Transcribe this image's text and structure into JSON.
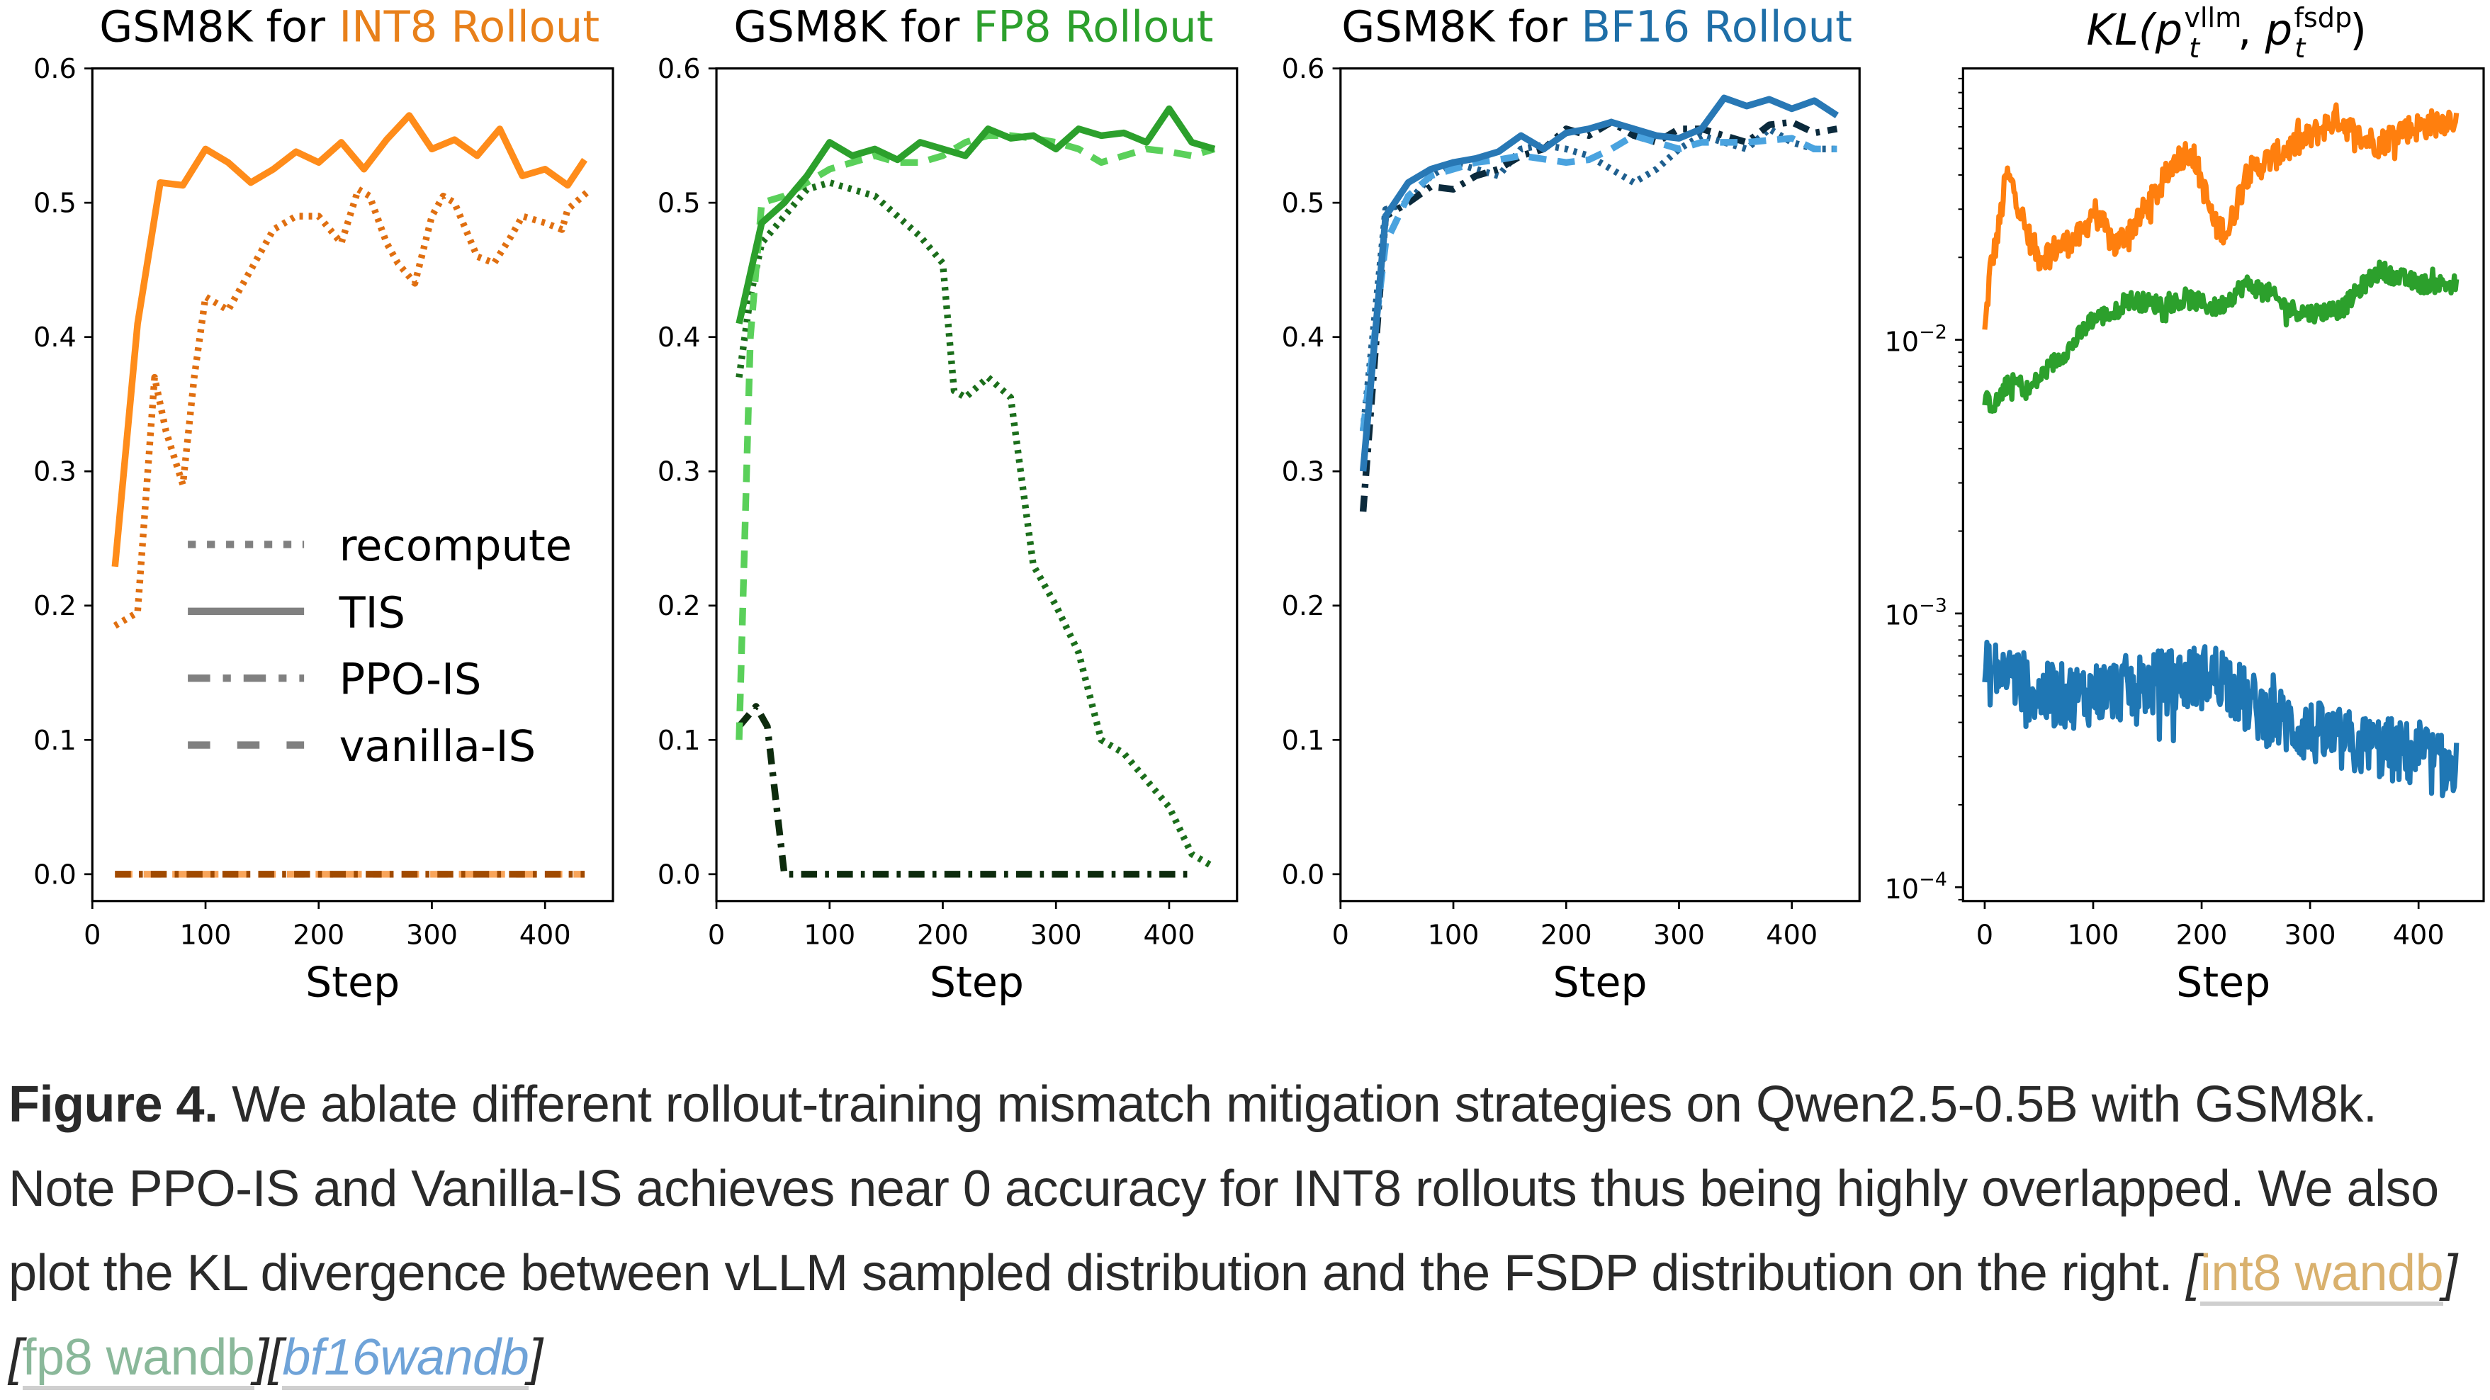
{
  "chart_data": [
    {
      "type": "line",
      "title_prefix": "GSM8K for ",
      "title_highlight": "INT8 Rollout",
      "title_color": "#e8801a",
      "xlabel": "Step",
      "ylabel": "",
      "xlim": [
        0,
        460
      ],
      "ylim": [
        -0.02,
        0.6
      ],
      "xticks": [
        0,
        100,
        200,
        300,
        400
      ],
      "yticks": [
        0.0,
        0.1,
        0.2,
        0.3,
        0.4,
        0.5,
        0.6
      ],
      "yticklabels": [
        "0.0",
        "0.1",
        "0.2",
        "0.3",
        "0.4",
        "0.5",
        "0.6"
      ],
      "yscale": "linear",
      "legend": {
        "placement": "center-left",
        "entries": [
          {
            "label": "recompute",
            "style": "dotted"
          },
          {
            "label": "TIS",
            "style": "solid"
          },
          {
            "label": "PPO-IS",
            "style": "dashdot"
          },
          {
            "label": "vanilla-IS",
            "style": "dashed"
          }
        ]
      },
      "series": [
        {
          "name": "vanilla-IS",
          "style": "dashed",
          "color": "#f9a55a",
          "x": [
            20,
            40,
            60,
            80,
            100,
            120,
            140,
            160,
            180,
            200,
            220,
            240,
            260,
            280,
            300,
            320,
            340,
            360,
            380,
            400,
            420,
            435
          ],
          "y": [
            0,
            0,
            0,
            0,
            0,
            0,
            0,
            0,
            0,
            0,
            0,
            0,
            0,
            0,
            0,
            0,
            0,
            0,
            0,
            0,
            0,
            0
          ]
        },
        {
          "name": "PPO-IS",
          "style": "dashdot",
          "color": "#a04a00",
          "x": [
            20,
            40,
            60,
            80,
            100,
            120,
            140,
            160,
            180,
            200,
            220,
            240,
            260,
            280,
            300,
            320,
            340,
            360,
            380,
            400,
            420,
            435
          ],
          "y": [
            0,
            0,
            0,
            0,
            0,
            0,
            0,
            0,
            0,
            0,
            0,
            0,
            0,
            0,
            0,
            0,
            0,
            0,
            0,
            0,
            0,
            0
          ]
        },
        {
          "name": "recompute",
          "style": "dotted",
          "color": "#e06f10",
          "x": [
            20,
            40,
            55,
            65,
            80,
            90,
            100,
            120,
            140,
            160,
            180,
            200,
            210,
            220,
            235,
            245,
            260,
            270,
            285,
            300,
            310,
            320,
            340,
            355,
            370,
            380,
            400,
            415,
            420,
            440
          ],
          "y": [
            0.185,
            0.195,
            0.37,
            0.33,
            0.29,
            0.37,
            0.43,
            0.42,
            0.45,
            0.48,
            0.49,
            0.49,
            0.48,
            0.47,
            0.51,
            0.505,
            0.47,
            0.455,
            0.44,
            0.49,
            0.505,
            0.5,
            0.46,
            0.455,
            0.475,
            0.49,
            0.485,
            0.48,
            0.495,
            0.51
          ]
        },
        {
          "name": "TIS",
          "style": "solid",
          "color": "#ff8c1a",
          "x": [
            20,
            40,
            60,
            80,
            100,
            120,
            140,
            160,
            180,
            200,
            220,
            240,
            260,
            280,
            300,
            320,
            340,
            360,
            380,
            400,
            420,
            435
          ],
          "y": [
            0.229,
            0.41,
            0.515,
            0.513,
            0.54,
            0.53,
            0.515,
            0.525,
            0.538,
            0.53,
            0.545,
            0.525,
            0.547,
            0.565,
            0.54,
            0.547,
            0.535,
            0.555,
            0.52,
            0.525,
            0.513,
            0.532
          ]
        }
      ]
    },
    {
      "type": "line",
      "title_prefix": "GSM8K for ",
      "title_highlight": "FP8 Rollout",
      "title_color": "#2ca02c",
      "xlabel": "Step",
      "ylabel": "",
      "xlim": [
        0,
        460
      ],
      "ylim": [
        -0.02,
        0.6
      ],
      "xticks": [
        0,
        100,
        200,
        300,
        400
      ],
      "yticks": [
        0.0,
        0.1,
        0.2,
        0.3,
        0.4,
        0.5,
        0.6
      ],
      "yticklabels": [
        "0.0",
        "0.1",
        "0.2",
        "0.3",
        "0.4",
        "0.5",
        "0.6"
      ],
      "yscale": "linear",
      "series": [
        {
          "name": "recompute",
          "style": "dotted",
          "color": "#1b6e1b",
          "x": [
            20,
            30,
            40,
            60,
            80,
            100,
            120,
            140,
            160,
            180,
            200,
            210,
            220,
            240,
            260,
            280,
            300,
            320,
            340,
            360,
            380,
            400,
            420,
            440
          ],
          "y": [
            0.37,
            0.43,
            0.47,
            0.49,
            0.51,
            0.515,
            0.51,
            0.505,
            0.49,
            0.475,
            0.455,
            0.36,
            0.355,
            0.37,
            0.355,
            0.23,
            0.2,
            0.165,
            0.1,
            0.09,
            0.07,
            0.05,
            0.015,
            0.005
          ]
        },
        {
          "name": "PPO-IS",
          "style": "dashdot",
          "color": "#0d2b0d",
          "x": [
            20,
            35,
            45,
            60,
            80,
            100,
            140,
            180,
            220,
            260,
            300,
            340,
            380,
            420
          ],
          "y": [
            0.11,
            0.125,
            0.11,
            0.0,
            0.0,
            0.0,
            0.0,
            0.0,
            0.0,
            0.0,
            0.0,
            0.0,
            0.0,
            0.0
          ]
        },
        {
          "name": "vanilla-IS",
          "style": "dashed",
          "color": "#5ad05a",
          "x": [
            20,
            30,
            40,
            60,
            80,
            100,
            120,
            140,
            160,
            180,
            200,
            220,
            240,
            260,
            280,
            300,
            320,
            340,
            360,
            380,
            400,
            420,
            440
          ],
          "y": [
            0.1,
            0.4,
            0.5,
            0.505,
            0.515,
            0.525,
            0.53,
            0.535,
            0.53,
            0.53,
            0.535,
            0.545,
            0.55,
            0.55,
            0.548,
            0.545,
            0.54,
            0.53,
            0.535,
            0.54,
            0.538,
            0.535,
            0.54
          ]
        },
        {
          "name": "TIS",
          "style": "solid",
          "color": "#2ca02c",
          "x": [
            20,
            40,
            60,
            80,
            100,
            120,
            140,
            160,
            180,
            200,
            220,
            240,
            260,
            280,
            300,
            320,
            340,
            360,
            380,
            400,
            420,
            440
          ],
          "y": [
            0.41,
            0.485,
            0.5,
            0.52,
            0.545,
            0.535,
            0.54,
            0.532,
            0.545,
            0.54,
            0.535,
            0.555,
            0.548,
            0.55,
            0.54,
            0.555,
            0.55,
            0.552,
            0.545,
            0.57,
            0.545,
            0.54
          ]
        }
      ]
    },
    {
      "type": "line",
      "title_prefix": "GSM8K for ",
      "title_highlight": "BF16 Rollout",
      "title_color": "#1f6fa8",
      "xlabel": "Step",
      "ylabel": "",
      "xlim": [
        0,
        460
      ],
      "ylim": [
        -0.02,
        0.6
      ],
      "xticks": [
        0,
        100,
        200,
        300,
        400
      ],
      "yticks": [
        0.0,
        0.1,
        0.2,
        0.3,
        0.4,
        0.5,
        0.6
      ],
      "yticklabels": [
        "0.0",
        "0.1",
        "0.2",
        "0.3",
        "0.4",
        "0.5",
        "0.6"
      ],
      "yscale": "linear",
      "series": [
        {
          "name": "recompute",
          "style": "dotted",
          "color": "#1f5f8f",
          "x": [
            20,
            40,
            60,
            80,
            100,
            120,
            140,
            160,
            180,
            200,
            220,
            240,
            260,
            280,
            300,
            320,
            340,
            360,
            380,
            400,
            420,
            440
          ],
          "y": [
            0.33,
            0.495,
            0.5,
            0.52,
            0.53,
            0.525,
            0.52,
            0.54,
            0.543,
            0.54,
            0.535,
            0.525,
            0.515,
            0.525,
            0.54,
            0.55,
            0.545,
            0.54,
            0.555,
            0.545,
            0.54,
            0.54
          ]
        },
        {
          "name": "PPO-IS",
          "style": "dashdot",
          "color": "#0b2a3c",
          "x": [
            20,
            40,
            60,
            80,
            100,
            120,
            140,
            160,
            180,
            200,
            220,
            240,
            260,
            280,
            300,
            320,
            340,
            360,
            380,
            400,
            420,
            440
          ],
          "y": [
            0.27,
            0.49,
            0.5,
            0.512,
            0.51,
            0.52,
            0.525,
            0.535,
            0.54,
            0.555,
            0.55,
            0.56,
            0.55,
            0.545,
            0.555,
            0.555,
            0.55,
            0.545,
            0.558,
            0.56,
            0.552,
            0.555
          ]
        },
        {
          "name": "vanilla-IS",
          "style": "dashed",
          "color": "#4aa3df",
          "x": [
            20,
            40,
            60,
            80,
            100,
            120,
            140,
            160,
            200,
            220,
            240,
            260,
            300,
            320,
            340,
            360,
            400,
            420,
            440
          ],
          "y": [
            0.33,
            0.47,
            0.505,
            0.52,
            0.525,
            0.53,
            0.532,
            0.535,
            0.53,
            0.532,
            0.54,
            0.55,
            0.54,
            0.545,
            0.545,
            0.545,
            0.548,
            0.54,
            0.54
          ]
        },
        {
          "name": "TIS",
          "style": "solid",
          "color": "#2878b5",
          "x": [
            20,
            40,
            60,
            80,
            100,
            120,
            140,
            160,
            180,
            200,
            220,
            240,
            260,
            280,
            300,
            320,
            340,
            360,
            380,
            400,
            420,
            440
          ],
          "y": [
            0.3,
            0.49,
            0.515,
            0.525,
            0.53,
            0.533,
            0.538,
            0.55,
            0.54,
            0.552,
            0.555,
            0.56,
            0.555,
            0.55,
            0.548,
            0.555,
            0.578,
            0.572,
            0.577,
            0.57,
            0.576,
            0.565
          ]
        }
      ]
    },
    {
      "type": "line",
      "title_math": {
        "base": "KL(",
        "p1": "p",
        "sub1": "t",
        "sup1": "vllm",
        "sep": ", ",
        "p2": "p",
        "sub2": "t",
        "sup2": "fsdp",
        "close": ")"
      },
      "xlabel": "Step",
      "ylabel": "",
      "xlim": [
        -20,
        460
      ],
      "ylim": [
        8.9e-05,
        0.098
      ],
      "yscale": "log",
      "xticks": [
        0,
        100,
        200,
        300,
        400
      ],
      "yticks": [
        0.0001,
        0.001,
        0.01
      ],
      "yticklabels": [
        {
          "base": "10",
          "exp": "−4"
        },
        {
          "base": "10",
          "exp": "−3"
        },
        {
          "base": "10",
          "exp": "−2"
        }
      ],
      "series": [
        {
          "name": "INT8 KL",
          "style": "solid",
          "color": "#ff7f0e",
          "noise_rel": 0.12,
          "x": [
            0,
            5,
            12,
            20,
            28,
            38,
            50,
            70,
            90,
            100,
            120,
            140,
            160,
            175,
            190,
            200,
            212,
            225,
            240,
            260,
            280,
            300,
            325,
            345,
            365,
            380,
            400,
            415,
            435
          ],
          "y": [
            0.0105,
            0.018,
            0.024,
            0.04,
            0.035,
            0.025,
            0.02,
            0.022,
            0.024,
            0.03,
            0.022,
            0.027,
            0.035,
            0.045,
            0.05,
            0.038,
            0.026,
            0.025,
            0.04,
            0.045,
            0.05,
            0.055,
            0.065,
            0.055,
            0.052,
            0.058,
            0.06,
            0.062,
            0.065
          ]
        },
        {
          "name": "FP8 KL",
          "style": "solid",
          "color": "#2ca02c",
          "noise_rel": 0.08,
          "x": [
            0,
            10,
            20,
            30,
            40,
            60,
            80,
            100,
            120,
            130,
            160,
            190,
            215,
            240,
            260,
            280,
            300,
            330,
            350,
            365,
            380,
            400,
            435
          ],
          "y": [
            0.006,
            0.0058,
            0.0068,
            0.007,
            0.0065,
            0.008,
            0.0095,
            0.012,
            0.0125,
            0.014,
            0.0135,
            0.014,
            0.013,
            0.016,
            0.015,
            0.013,
            0.0125,
            0.013,
            0.016,
            0.018,
            0.017,
            0.016,
            0.016
          ]
        },
        {
          "name": "BF16 KL",
          "style": "solid",
          "color": "#1f77b4",
          "noise_rel": 0.28,
          "x": [
            0,
            20,
            50,
            80,
            110,
            150,
            190,
            220,
            240,
            260,
            290,
            330,
            370,
            400,
            420,
            435
          ],
          "y": [
            0.0006,
            0.00062,
            0.0005,
            0.0005,
            0.00052,
            0.00055,
            0.00058,
            0.0006,
            0.00048,
            0.00043,
            0.00038,
            0.00034,
            0.00032,
            0.0003,
            0.00028,
            0.00026
          ]
        }
      ]
    }
  ],
  "caption": {
    "figure_label": "Figure 4.",
    "text": " We ablate different rollout-training mismatch mitigation strategies on Qwen2.5-0.5B with GSM8k. Note PPO-IS and Vanilla-IS achieves near 0 accuracy for INT8 rollouts thus being highly overlapped. We also plot the KL divergence between vLLM sampled distribution and the FSDP distribution on the right. ",
    "links": [
      {
        "label": "int8 wandb",
        "color": "#d9b16e"
      },
      {
        "label": "fp8 wandb",
        "color": "#8ab89a"
      },
      {
        "label": "bf16wandb",
        "color": "#6fa3d8"
      }
    ],
    "bracket_open": "[",
    "bracket_close": "]"
  }
}
